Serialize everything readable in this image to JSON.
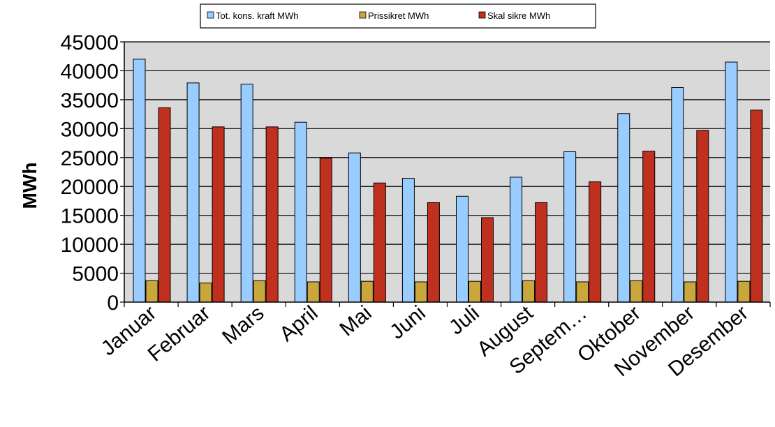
{
  "chart_data": {
    "type": "bar",
    "title": "",
    "xlabel": "",
    "ylabel": "MWh",
    "ylim": [
      0,
      45000
    ],
    "ytick_step": 5000,
    "grid": true,
    "legend_position": "top",
    "categories": [
      "Januar",
      "Februar",
      "Mars",
      "April",
      "Mai",
      "Juni",
      "Juli",
      "August",
      "Septem…",
      "Oktober",
      "November",
      "Desember"
    ],
    "series": [
      {
        "name": "Tot. kons. kraft MWh",
        "color": "#99CCFF",
        "values": [
          42000,
          37900,
          37700,
          31100,
          25800,
          21400,
          18300,
          21600,
          26000,
          32600,
          37100,
          41500
        ]
      },
      {
        "name": "Prissikret MWh",
        "color": "#C9A73C",
        "values": [
          3700,
          3300,
          3700,
          3500,
          3600,
          3500,
          3600,
          3700,
          3500,
          3700,
          3500,
          3600
        ]
      },
      {
        "name": "Skal sikre MWh",
        "color": "#C0301F",
        "values": [
          33600,
          30300,
          30300,
          24900,
          20600,
          17200,
          14600,
          17200,
          20800,
          26100,
          29700,
          33200
        ]
      }
    ],
    "plot_background": "#D9D9D9"
  }
}
